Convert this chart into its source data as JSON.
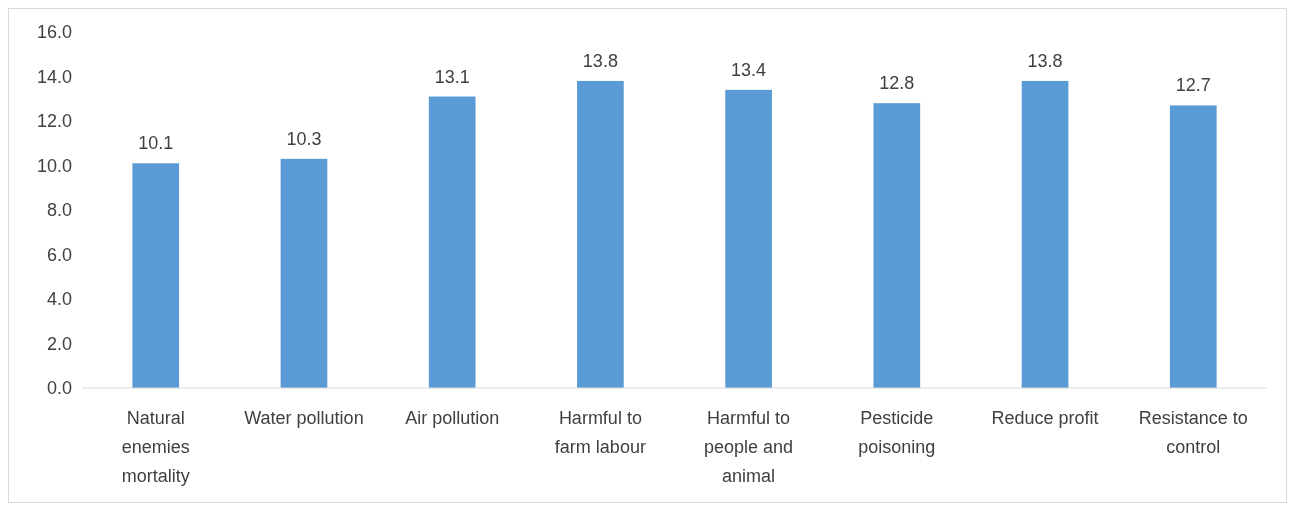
{
  "chart_data": {
    "type": "bar",
    "categories": [
      "Natural enemies mortality",
      "Water pollution",
      "Air pollution",
      "Harmful to farm labour",
      "Harmful to people and animal",
      "Pesticide poisoning",
      "Reduce profit",
      "Resistance to control"
    ],
    "values": [
      10.1,
      10.3,
      13.1,
      13.8,
      13.4,
      12.8,
      13.8,
      12.7
    ],
    "color": "#5b9bd5",
    "ylim": [
      0,
      16
    ],
    "yticks": [
      {
        "value": 0,
        "label": "0.0"
      },
      {
        "value": 2,
        "label": "2.0"
      },
      {
        "value": 4,
        "label": "4.0"
      },
      {
        "value": 6,
        "label": "6.0"
      },
      {
        "value": 8,
        "label": "8.0"
      },
      {
        "value": 10,
        "label": "10.0"
      },
      {
        "value": 12,
        "label": "12.0"
      },
      {
        "value": 14,
        "label": "14.0"
      },
      {
        "value": 16,
        "label": "16.0"
      }
    ],
    "data_labels": true,
    "grid": false
  }
}
